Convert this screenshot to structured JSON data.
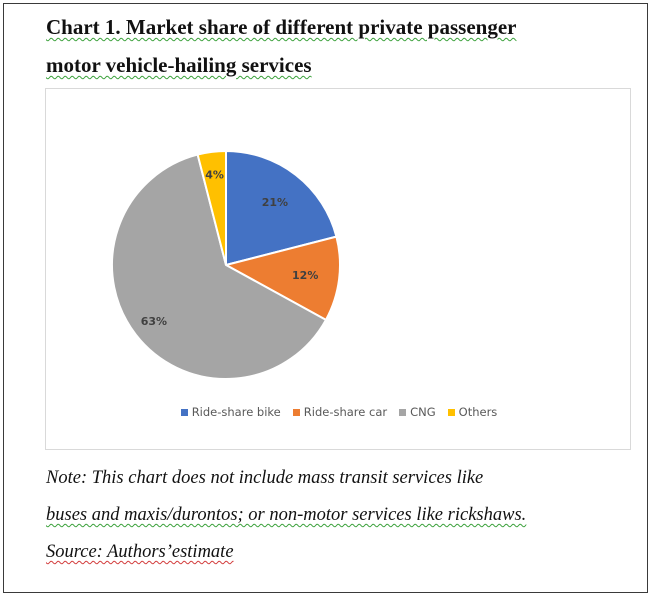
{
  "title": {
    "line1": "Chart 1. Market share of different private passenger",
    "line2": "motor vehicle-hailing services"
  },
  "note": {
    "line1": "Note: This chart does not include mass transit services like",
    "line2": "buses and maxis/durontos; or non-motor services like rickshaws.",
    "line3": "Source: Authors’estimate"
  },
  "chart_data": {
    "type": "pie",
    "title": "",
    "slices": [
      {
        "label": "Ride-share bike",
        "value": 21,
        "display": "21%",
        "color": "#4472C4"
      },
      {
        "label": "Ride-share car",
        "value": 12,
        "display": "12%",
        "color": "#ED7D31"
      },
      {
        "label": "CNG",
        "value": 63,
        "display": "63%",
        "color": "#A5A5A5"
      },
      {
        "label": "Others",
        "value": 4,
        "display": "4%",
        "color": "#FFC000"
      }
    ],
    "legend_position": "bottom",
    "label_color": "#404040"
  }
}
